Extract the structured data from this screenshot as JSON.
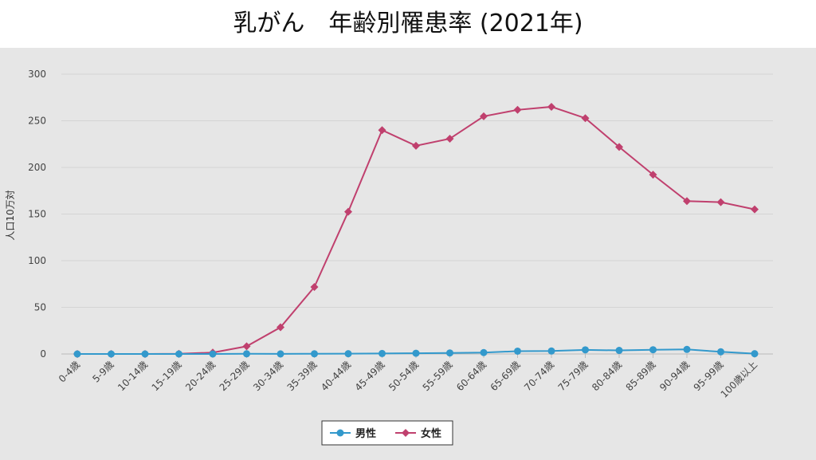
{
  "title": "乳がん　年齢別罹患率 (2021年)",
  "chart_data": {
    "type": "line",
    "title": "乳がん　年齢別罹患率 (2021年)",
    "ylabel": "人口10万対",
    "xlabel": "",
    "ylim": [
      0,
      300
    ],
    "yticks": [
      0,
      50,
      100,
      150,
      200,
      250,
      300
    ],
    "grid": true,
    "legend_position": "bottom",
    "categories": [
      "0-4歳",
      "5-9歳",
      "10-14歳",
      "15-19歳",
      "20-24歳",
      "25-29歳",
      "30-34歳",
      "35-39歳",
      "40-44歳",
      "45-49歳",
      "50-54歳",
      "55-59歳",
      "60-64歳",
      "65-69歳",
      "70-74歳",
      "75-79歳",
      "80-84歳",
      "85-89歳",
      "90-94歳",
      "95-99歳",
      "100歳以上"
    ],
    "series": [
      {
        "name": "男性",
        "color": "#3399cc",
        "marker": "circle",
        "values": [
          0,
          0,
          0,
          0,
          0,
          0.2,
          0.1,
          0.2,
          0.3,
          0.5,
          0.8,
          1.1,
          1.5,
          3.0,
          3.2,
          4.4,
          3.8,
          4.5,
          4.9,
          2.3,
          0.3
        ]
      },
      {
        "name": "女性",
        "color": "#c0406e",
        "marker": "diamond",
        "values": [
          0,
          0,
          0,
          0.2,
          1.5,
          8.2,
          28.6,
          71.8,
          152.5,
          240.0,
          223.2,
          230.8,
          254.8,
          261.7,
          265.0,
          252.8,
          221.9,
          192.2,
          163.9,
          162.7,
          155.0
        ]
      }
    ]
  }
}
